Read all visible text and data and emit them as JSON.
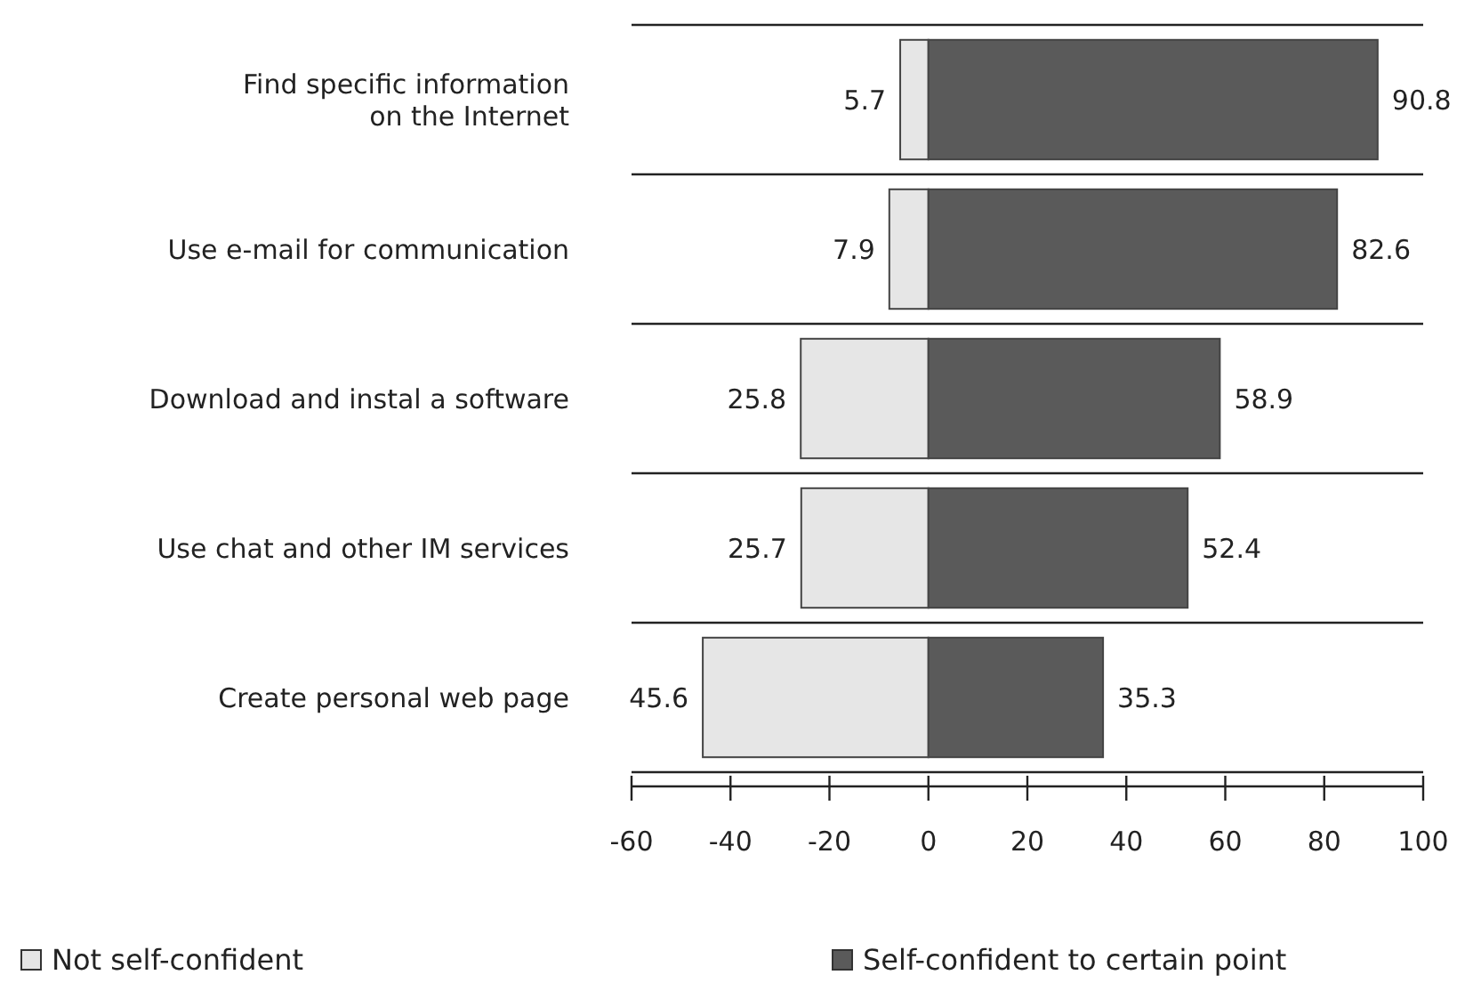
{
  "chart_data": {
    "type": "bar",
    "orientation": "horizontal",
    "categories": [
      "Find specific information\non the Internet",
      "Use e-mail for communication",
      "Download and instal a software",
      "Use chat and other IM services",
      "Create personal web page"
    ],
    "series": [
      {
        "name": "Not self-confident",
        "color": "#e6e6e6",
        "values": [
          5.7,
          7.9,
          25.8,
          25.7,
          45.6
        ],
        "base": [
          -5.7,
          -7.9,
          -25.8,
          -25.7,
          -45.6
        ],
        "data_labels": true
      },
      {
        "name": "Self-confident to certain point",
        "color": "#5a5a5a",
        "values": [
          90.8,
          82.6,
          58.9,
          52.4,
          35.3
        ],
        "data_labels": true
      }
    ],
    "xlim": [
      -60,
      100
    ],
    "xticks": [
      -60,
      -40,
      -20,
      0,
      20,
      40,
      60,
      80,
      100
    ],
    "legend": "bottom"
  }
}
